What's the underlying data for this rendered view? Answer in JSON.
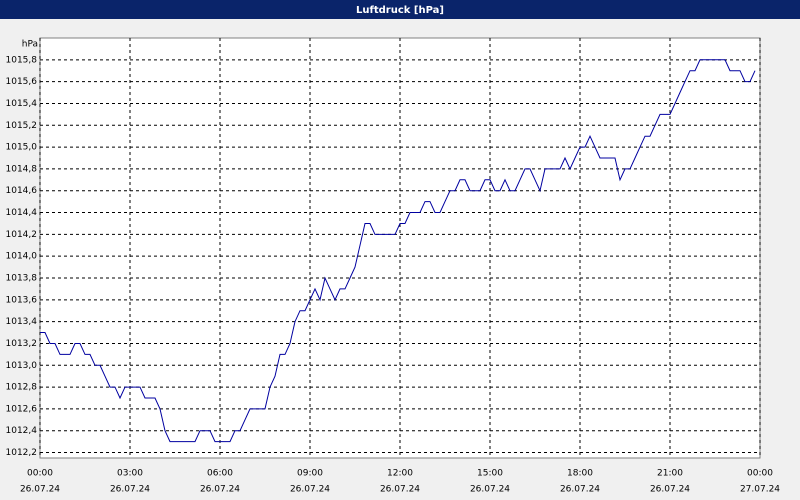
{
  "chart_data": {
    "type": "line",
    "title": "Luftdruck [hPa]",
    "ylabel": "hPa",
    "color": "#0000a0",
    "grid": true,
    "x": [
      0,
      10,
      20,
      30,
      40,
      50,
      60,
      70,
      80,
      90,
      100,
      110,
      120,
      130,
      140,
      150,
      160,
      170,
      180,
      190,
      200,
      210,
      220,
      230,
      240,
      250,
      260,
      270,
      280,
      290,
      300,
      310,
      320,
      330,
      340,
      350,
      360,
      370,
      380,
      390,
      400,
      410,
      420,
      430,
      440,
      450,
      460,
      470,
      480,
      490,
      500,
      510,
      520,
      530,
      540,
      550,
      560,
      570,
      580,
      590,
      600,
      610,
      620,
      630,
      640,
      650,
      660,
      670,
      680,
      690,
      700,
      710,
      720,
      730,
      740,
      750,
      760,
      770,
      780,
      790,
      800,
      810,
      820,
      830,
      840,
      850,
      860,
      870,
      880,
      890,
      900,
      910,
      920,
      930,
      940,
      950,
      960,
      970,
      980,
      990,
      1000,
      1010,
      1020,
      1030,
      1040,
      1050,
      1060,
      1070,
      1080,
      1090,
      1100,
      1110,
      1120,
      1130,
      1140,
      1150,
      1160,
      1170,
      1180,
      1190,
      1200,
      1210,
      1220,
      1230,
      1240,
      1250,
      1260,
      1270,
      1280,
      1290,
      1300,
      1310,
      1320,
      1330,
      1340,
      1350,
      1360,
      1370,
      1380,
      1390,
      1400,
      1410,
      1420,
      1430
    ],
    "values": [
      1013.3,
      1013.3,
      1013.2,
      1013.2,
      1013.1,
      1013.1,
      1013.1,
      1013.2,
      1013.2,
      1013.1,
      1013.1,
      1013.0,
      1013.0,
      1012.9,
      1012.8,
      1012.8,
      1012.7,
      1012.8,
      1012.8,
      1012.8,
      1012.8,
      1012.7,
      1012.7,
      1012.7,
      1012.6,
      1012.4,
      1012.3,
      1012.3,
      1012.3,
      1012.3,
      1012.3,
      1012.3,
      1012.4,
      1012.4,
      1012.4,
      1012.3,
      1012.3,
      1012.3,
      1012.3,
      1012.4,
      1012.4,
      1012.5,
      1012.6,
      1012.6,
      1012.6,
      1012.6,
      1012.8,
      1012.9,
      1013.1,
      1013.1,
      1013.2,
      1013.4,
      1013.5,
      1013.5,
      1013.6,
      1013.7,
      1013.6,
      1013.8,
      1013.7,
      1013.6,
      1013.7,
      1013.7,
      1013.8,
      1013.9,
      1014.1,
      1014.3,
      1014.3,
      1014.2,
      1014.2,
      1014.2,
      1014.2,
      1014.2,
      1014.3,
      1014.3,
      1014.4,
      1014.4,
      1014.4,
      1014.5,
      1014.5,
      1014.4,
      1014.4,
      1014.5,
      1014.6,
      1014.6,
      1014.7,
      1014.7,
      1014.6,
      1014.6,
      1014.6,
      1014.7,
      1014.7,
      1014.6,
      1014.6,
      1014.7,
      1014.6,
      1014.6,
      1014.7,
      1014.8,
      1014.8,
      1014.7,
      1014.6,
      1014.8,
      1014.8,
      1014.8,
      1014.8,
      1014.9,
      1014.8,
      1014.9,
      1015.0,
      1015.0,
      1015.1,
      1015.0,
      1014.9,
      1014.9,
      1014.9,
      1014.9,
      1014.7,
      1014.8,
      1014.8,
      1014.9,
      1015.0,
      1015.1,
      1015.1,
      1015.2,
      1015.3,
      1015.3,
      1015.3,
      1015.4,
      1015.5,
      1015.6,
      1015.7,
      1015.7,
      1015.8,
      1015.8,
      1015.8,
      1015.8,
      1015.8,
      1015.8,
      1015.7,
      1015.7,
      1015.7,
      1015.6,
      1015.6,
      1015.7
    ],
    "xlim": [
      0,
      1440
    ],
    "xticks": [
      {
        "value": 0,
        "label": "00:00"
      },
      {
        "value": 180,
        "label": "03:00"
      },
      {
        "value": 360,
        "label": "06:00"
      },
      {
        "value": 540,
        "label": "09:00"
      },
      {
        "value": 720,
        "label": "12:00"
      },
      {
        "value": 900,
        "label": "15:00"
      },
      {
        "value": 1080,
        "label": "18:00"
      },
      {
        "value": 1260,
        "label": "21:00"
      },
      {
        "value": 1440,
        "label": "00:00"
      }
    ],
    "xtick_dates": [
      "26.07.24",
      "26.07.24",
      "26.07.24",
      "26.07.24",
      "26.07.24",
      "26.07.24",
      "26.07.24",
      "26.07.24",
      "27.07.24"
    ],
    "ylim": [
      1012.15,
      1016.0
    ],
    "yticks": [
      {
        "value": 1012.2,
        "label": "1012,2"
      },
      {
        "value": 1012.4,
        "label": "1012,4"
      },
      {
        "value": 1012.6,
        "label": "1012,6"
      },
      {
        "value": 1012.8,
        "label": "1012,8"
      },
      {
        "value": 1013.0,
        "label": "1013,0"
      },
      {
        "value": 1013.2,
        "label": "1013,2"
      },
      {
        "value": 1013.4,
        "label": "1013,4"
      },
      {
        "value": 1013.6,
        "label": "1013,6"
      },
      {
        "value": 1013.8,
        "label": "1013,8"
      },
      {
        "value": 1014.0,
        "label": "1014,0"
      },
      {
        "value": 1014.2,
        "label": "1014,2"
      },
      {
        "value": 1014.4,
        "label": "1014,4"
      },
      {
        "value": 1014.6,
        "label": "1014,6"
      },
      {
        "value": 1014.8,
        "label": "1014,8"
      },
      {
        "value": 1015.0,
        "label": "1015,0"
      },
      {
        "value": 1015.2,
        "label": "1015,2"
      },
      {
        "value": 1015.4,
        "label": "1015,4"
      },
      {
        "value": 1015.6,
        "label": "1015,6"
      },
      {
        "value": 1015.8,
        "label": "1015,8"
      }
    ]
  }
}
